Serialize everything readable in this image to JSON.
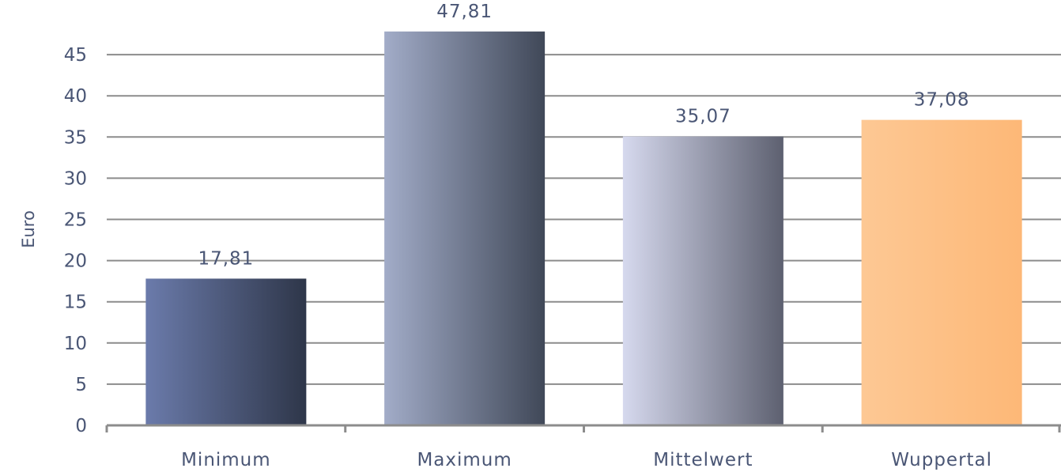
{
  "chart_data": {
    "type": "bar",
    "title": "",
    "xlabel": "",
    "ylabel": "Euro",
    "categories": [
      "Minimum",
      "Maximum",
      "Mittelwert",
      "Wuppertal"
    ],
    "values": [
      17.81,
      47.81,
      35.07,
      37.08
    ],
    "value_labels": [
      "17,81",
      "47,81",
      "35,07",
      "37,08"
    ],
    "ylim": [
      0,
      50
    ],
    "yticks": [
      0,
      5,
      10,
      15,
      20,
      25,
      30,
      35,
      40,
      45
    ],
    "grid": true,
    "legend": "none",
    "bar_colors": [
      [
        "#6b7bab",
        "#2e3649"
      ],
      [
        "#a2acc8",
        "#404858"
      ],
      [
        "#d6d9ee",
        "#5d6070"
      ],
      [
        "#fdc894",
        "#fdb877"
      ]
    ],
    "text_color": "#4a5675",
    "grid_color": "#8c8c8c"
  }
}
